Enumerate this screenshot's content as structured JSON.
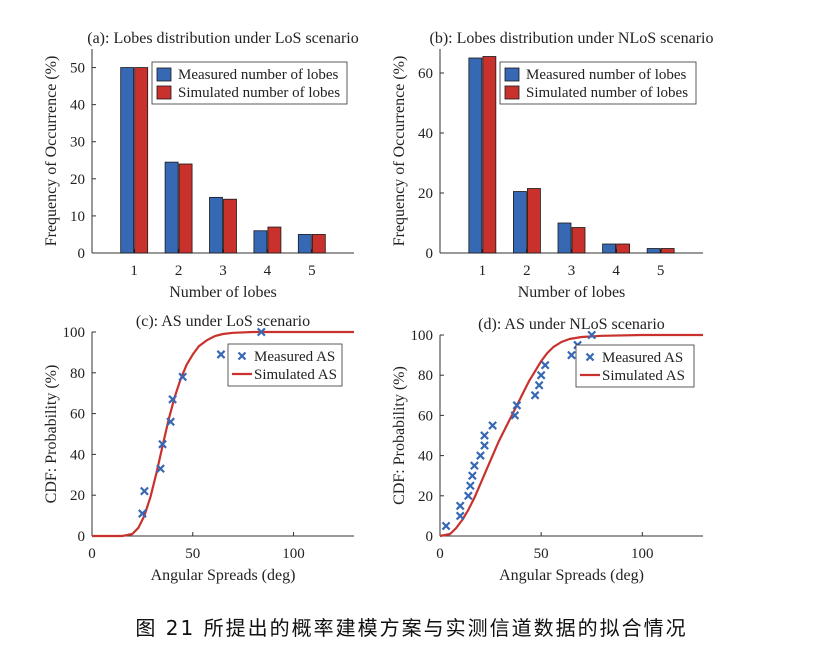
{
  "caption": "图 21 所提出的概率建模方案与实测信道数据的拟合情况",
  "colors": {
    "measured": "#3768b4",
    "simulated": "#c9312c",
    "axis": "#333333"
  },
  "chart_data": [
    {
      "type": "bar",
      "title": "(a): Lobes distribution under LoS scenario",
      "xlabel": "Number of lobes",
      "ylabel": "Frequency of Occurrence (%)",
      "categories": [
        "1",
        "2",
        "3",
        "4",
        "5"
      ],
      "ylim": [
        0,
        55
      ],
      "yticks": [
        0,
        10,
        20,
        30,
        40,
        50
      ],
      "legend_position": "top-right",
      "series": [
        {
          "name": "Measured number of lobes",
          "values": [
            50,
            24.5,
            15,
            6,
            5
          ]
        },
        {
          "name": "Simulated number of lobes",
          "values": [
            50,
            24,
            14.5,
            7,
            5
          ]
        }
      ]
    },
    {
      "type": "bar",
      "title": "(b): Lobes distribution under NLoS scenario",
      "xlabel": "Number of lobes",
      "ylabel": "Frequency of Occurrence (%)",
      "categories": [
        "1",
        "2",
        "3",
        "4",
        "5"
      ],
      "ylim": [
        0,
        68
      ],
      "yticks": [
        0,
        20,
        40,
        60
      ],
      "legend_position": "top-right",
      "series": [
        {
          "name": "Measured number of lobes",
          "values": [
            65,
            20.5,
            10,
            3,
            1.5
          ]
        },
        {
          "name": "Simulated number of lobes",
          "values": [
            65.5,
            21.5,
            8.5,
            3,
            1.5
          ]
        }
      ]
    },
    {
      "type": "scatter",
      "title": "(c): AS under LoS scenario",
      "xlabel": "Angular Spreads (deg)",
      "ylabel": "CDF: Probability (%)",
      "xlim": [
        0,
        130
      ],
      "ylim": [
        0,
        100
      ],
      "xticks": [
        0,
        50,
        100
      ],
      "yticks": [
        0,
        20,
        40,
        60,
        80,
        100
      ],
      "legend_position": "right",
      "series": [
        {
          "name": "Measured AS",
          "marker": "x",
          "x": [
            25,
            26,
            34,
            35,
            39,
            40,
            45,
            64,
            84
          ],
          "y": [
            11,
            22,
            33,
            45,
            56,
            67,
            78,
            89,
            100
          ]
        },
        {
          "name": "Simulated AS",
          "marker": "line",
          "x": [
            0,
            15,
            20,
            23,
            26,
            29,
            32,
            35,
            38,
            41,
            44,
            47,
            50,
            53,
            57,
            61,
            65,
            70,
            80,
            100,
            130
          ],
          "y": [
            0,
            0,
            1,
            4,
            10,
            19,
            31,
            44,
            57,
            68,
            77,
            84,
            89,
            93,
            96,
            98,
            99,
            99.6,
            100,
            100,
            100
          ]
        }
      ]
    },
    {
      "type": "scatter",
      "title": "(d): AS under NLoS scenario",
      "xlabel": "Angular Spreads (deg)",
      "ylabel": "CDF: Probability (%)",
      "xlim": [
        0,
        130
      ],
      "ylim": [
        0,
        100
      ],
      "xticks": [
        0,
        50,
        100
      ],
      "yticks": [
        0,
        20,
        40,
        60,
        80,
        100
      ],
      "legend_position": "right",
      "series": [
        {
          "name": "Measured AS",
          "marker": "x",
          "x": [
            3,
            10,
            10,
            14,
            15,
            16,
            17,
            20,
            22,
            22,
            26,
            37,
            38,
            47,
            49,
            50,
            52,
            65,
            68,
            75
          ],
          "y": [
            5,
            10,
            15,
            20,
            25,
            30,
            35,
            40,
            45,
            50,
            55,
            60,
            65,
            70,
            75,
            80,
            85,
            90,
            95,
            100
          ]
        },
        {
          "name": "Simulated AS",
          "marker": "line",
          "x": [
            0,
            5,
            8,
            11,
            14,
            17,
            20,
            23,
            26,
            29,
            32,
            35,
            38,
            41,
            44,
            47,
            50,
            53,
            56,
            60,
            64,
            70,
            80,
            100,
            130
          ],
          "y": [
            0,
            1,
            4,
            8,
            13,
            19,
            26,
            33,
            40,
            47,
            53,
            59,
            65,
            71,
            77,
            82,
            87,
            91,
            94,
            96.5,
            98,
            99,
            99.6,
            100,
            100
          ]
        }
      ]
    }
  ]
}
